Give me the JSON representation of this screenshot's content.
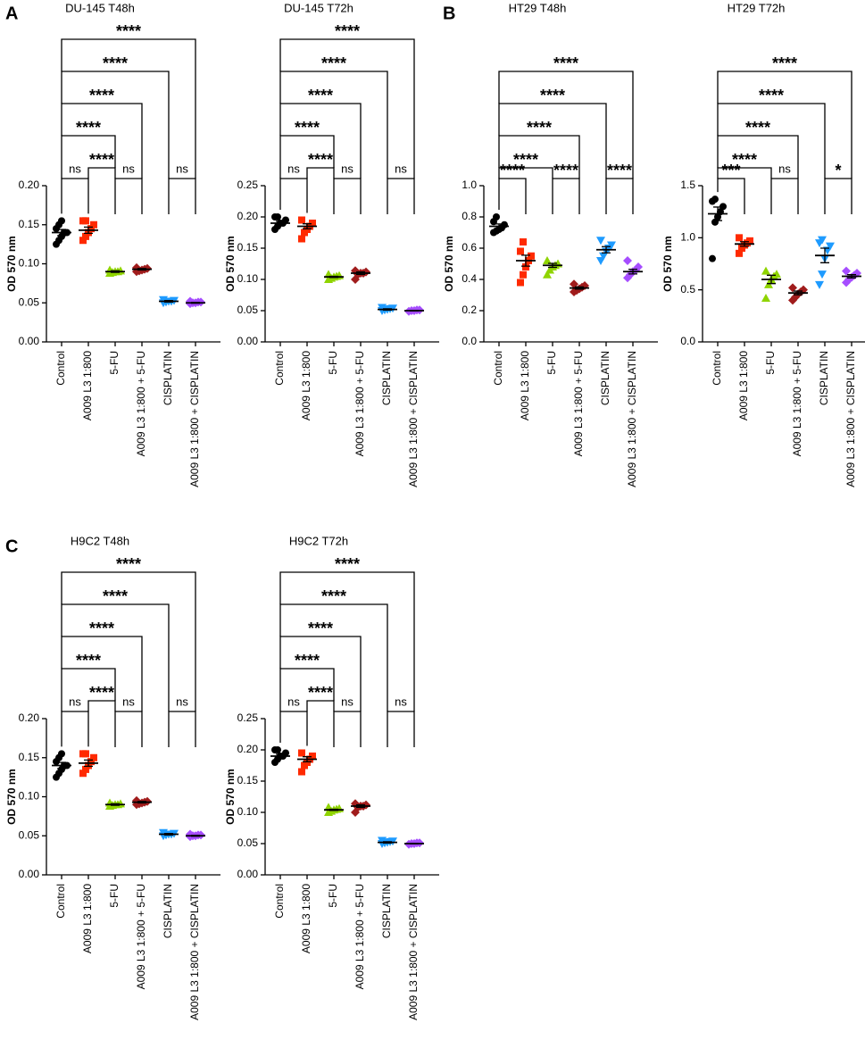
{
  "chart_data": [
    {
      "type": "dot",
      "panel": "A",
      "title": "DU-145 T48h",
      "y_label": "OD 570 nm",
      "categories": [
        "Control",
        "A009 L3 1:800",
        "5-FU",
        "A009 L3 1:800 + 5-FU",
        "CISPLATIN",
        "A009 L3 1:800 + CISPLATIN"
      ],
      "colors": [
        "#000000",
        "#ff2a00",
        "#8fd400",
        "#a01c1c",
        "#1e9bff",
        "#a64dff"
      ],
      "markers": [
        "circle",
        "square",
        "triangle",
        "diamond",
        "triangle-down",
        "diamond"
      ],
      "points": [
        [
          0.125,
          0.13,
          0.135,
          0.14,
          0.14,
          0.145,
          0.15,
          0.155
        ],
        [
          0.13,
          0.135,
          0.14,
          0.145,
          0.15,
          0.155,
          0.155
        ],
        [
          0.088,
          0.089,
          0.09,
          0.09,
          0.091,
          0.092
        ],
        [
          0.09,
          0.091,
          0.092,
          0.093,
          0.094,
          0.095
        ],
        [
          0.05,
          0.051,
          0.052,
          0.052,
          0.053,
          0.054
        ],
        [
          0.049,
          0.05,
          0.05,
          0.051,
          0.051,
          0.052
        ]
      ],
      "means": [
        0.14,
        0.143,
        0.09,
        0.093,
        0.052,
        0.05
      ],
      "errors": [
        0.004,
        0.004,
        0.001,
        0.001,
        0.001,
        0.0005
      ],
      "ylim": [
        0,
        0.2
      ],
      "yticks": [
        {
          "value": 0,
          "label": "0.00"
        },
        {
          "value": 0.05,
          "label": "0.05"
        },
        {
          "value": 0.1,
          "label": "0.10"
        },
        {
          "value": 0.15,
          "label": "0.15"
        },
        {
          "value": 0.2,
          "label": "0.20"
        }
      ],
      "comparisons": [
        {
          "from": 0,
          "to": 1,
          "label": "ns"
        },
        {
          "from": 2,
          "to": 3,
          "label": "ns"
        },
        {
          "from": 4,
          "to": 5,
          "label": "ns"
        },
        {
          "from": 1,
          "to": 2,
          "label": "****"
        },
        {
          "from": 0,
          "to": 2,
          "label": "****"
        },
        {
          "from": 0,
          "to": 3,
          "label": "****"
        },
        {
          "from": 0,
          "to": 4,
          "label": "****"
        },
        {
          "from": 0,
          "to": 5,
          "label": "****"
        }
      ]
    },
    {
      "type": "dot",
      "title": "DU-145 T72h",
      "y_label": "OD 570 nm",
      "categories": [
        "Control",
        "A009 L3 1:800",
        "5-FU",
        "A009 L3 1:800 + 5-FU",
        "CISPLATIN",
        "A009 L3 1:800 + CISPLATIN"
      ],
      "colors": [
        "#000000",
        "#ff2a00",
        "#8fd400",
        "#a01c1c",
        "#1e9bff",
        "#a64dff"
      ],
      "markers": [
        "circle",
        "square",
        "triangle",
        "diamond",
        "triangle-down",
        "diamond"
      ],
      "points": [
        [
          0.18,
          0.185,
          0.19,
          0.19,
          0.195,
          0.2,
          0.2
        ],
        [
          0.165,
          0.175,
          0.18,
          0.185,
          0.19,
          0.195
        ],
        [
          0.1,
          0.102,
          0.104,
          0.105,
          0.106,
          0.108
        ],
        [
          0.1,
          0.108,
          0.11,
          0.11,
          0.112,
          0.114
        ],
        [
          0.05,
          0.051,
          0.052,
          0.053,
          0.054,
          0.055
        ],
        [
          0.049,
          0.05,
          0.05,
          0.051,
          0.051
        ]
      ],
      "means": [
        0.19,
        0.185,
        0.104,
        0.11,
        0.052,
        0.05
      ],
      "errors": [
        0.003,
        0.004,
        0.001,
        0.002,
        0.001,
        0.0005
      ],
      "ylim": [
        0,
        0.25
      ],
      "yticks": [
        {
          "value": 0,
          "label": "0.00"
        },
        {
          "value": 0.05,
          "label": "0.05"
        },
        {
          "value": 0.1,
          "label": "0.10"
        },
        {
          "value": 0.15,
          "label": "0.15"
        },
        {
          "value": 0.2,
          "label": "0.20"
        },
        {
          "value": 0.25,
          "label": "0.25"
        }
      ],
      "comparisons": [
        {
          "from": 0,
          "to": 1,
          "label": "ns"
        },
        {
          "from": 2,
          "to": 3,
          "label": "ns"
        },
        {
          "from": 4,
          "to": 5,
          "label": "ns"
        },
        {
          "from": 1,
          "to": 2,
          "label": "****"
        },
        {
          "from": 0,
          "to": 2,
          "label": "****"
        },
        {
          "from": 0,
          "to": 3,
          "label": "****"
        },
        {
          "from": 0,
          "to": 4,
          "label": "****"
        },
        {
          "from": 0,
          "to": 5,
          "label": "****"
        }
      ]
    },
    {
      "type": "dot",
      "panel": "B",
      "title": "HT29 T48h",
      "y_label": "OD 570 nm",
      "categories": [
        "Control",
        "A009 L3 1:800",
        "5-FU",
        "A009 L3 1:800 + 5-FU",
        "CISPLATIN",
        "A009 L3 1:800 + CISPLATIN"
      ],
      "colors": [
        "#000000",
        "#ff2a00",
        "#8fd400",
        "#a01c1c",
        "#1e9bff",
        "#a64dff"
      ],
      "markers": [
        "circle",
        "square",
        "triangle",
        "diamond",
        "triangle-down",
        "diamond"
      ],
      "points": [
        [
          0.7,
          0.71,
          0.72,
          0.73,
          0.75,
          0.77,
          0.8
        ],
        [
          0.38,
          0.43,
          0.48,
          0.52,
          0.55,
          0.58,
          0.64
        ],
        [
          0.43,
          0.46,
          0.48,
          0.49,
          0.5,
          0.52
        ],
        [
          0.32,
          0.33,
          0.34,
          0.35,
          0.36,
          0.37
        ],
        [
          0.52,
          0.55,
          0.58,
          0.6,
          0.62,
          0.65
        ],
        [
          0.41,
          0.43,
          0.45,
          0.46,
          0.48,
          0.52
        ]
      ],
      "means": [
        0.74,
        0.52,
        0.49,
        0.345,
        0.59,
        0.45
      ],
      "errors": [
        0.015,
        0.035,
        0.013,
        0.007,
        0.02,
        0.015
      ],
      "ylim": [
        0,
        1
      ],
      "yticks": [
        {
          "value": 0,
          "label": "0.0"
        },
        {
          "value": 0.2,
          "label": "0.2"
        },
        {
          "value": 0.4,
          "label": "0.4"
        },
        {
          "value": 0.6,
          "label": "0.6"
        },
        {
          "value": 0.8,
          "label": "0.8"
        },
        {
          "value": 1,
          "label": "1.0"
        }
      ],
      "comparisons": [
        {
          "from": 0,
          "to": 1,
          "label": "****"
        },
        {
          "from": 2,
          "to": 3,
          "label": "****"
        },
        {
          "from": 4,
          "to": 5,
          "label": "****"
        },
        {
          "from": 0,
          "to": 2,
          "label": "****"
        },
        {
          "from": 0,
          "to": 3,
          "label": "****"
        },
        {
          "from": 0,
          "to": 4,
          "label": "****"
        },
        {
          "from": 0,
          "to": 5,
          "label": "****"
        }
      ]
    },
    {
      "type": "dot",
      "title": "HT29 T72h",
      "y_label": "OD 570 nm",
      "categories": [
        "Control",
        "A009 L3 1:800",
        "5-FU",
        "A009 L3 1:800 + 5-FU",
        "CISPLATIN",
        "A009 L3 1:800 + CISPLATIN"
      ],
      "colors": [
        "#000000",
        "#ff2a00",
        "#8fd400",
        "#a01c1c",
        "#1e9bff",
        "#a64dff"
      ],
      "markers": [
        "circle",
        "square",
        "triangle",
        "diamond",
        "triangle-down",
        "diamond"
      ],
      "points": [
        [
          0.8,
          1.15,
          1.2,
          1.25,
          1.3,
          1.35,
          1.37
        ],
        [
          0.85,
          0.9,
          0.93,
          0.95,
          0.97,
          1.0
        ],
        [
          0.42,
          0.55,
          0.6,
          0.63,
          0.65,
          0.68
        ],
        [
          0.4,
          0.43,
          0.46,
          0.48,
          0.5,
          0.52
        ],
        [
          0.55,
          0.65,
          0.8,
          0.88,
          0.92,
          0.95,
          0.98
        ],
        [
          0.57,
          0.6,
          0.62,
          0.64,
          0.66,
          0.68
        ]
      ],
      "means": [
        1.23,
        0.94,
        0.6,
        0.47,
        0.83,
        0.63
      ],
      "errors": [
        0.065,
        0.022,
        0.04,
        0.018,
        0.07,
        0.016
      ],
      "ylim": [
        0,
        1.5
      ],
      "yticks": [
        {
          "value": 0,
          "label": "0.0"
        },
        {
          "value": 0.5,
          "label": "0.5"
        },
        {
          "value": 1,
          "label": "1.0"
        },
        1.5
      ],
      "comparisons": [
        {
          "from": 0,
          "to": 1,
          "label": "***"
        },
        {
          "from": 2,
          "to": 3,
          "label": "ns"
        },
        {
          "from": 4,
          "to": 5,
          "label": "*"
        },
        {
          "from": 0,
          "to": 2,
          "label": "****"
        },
        {
          "from": 0,
          "to": 3,
          "label": "****"
        },
        {
          "from": 0,
          "to": 4,
          "label": "****"
        },
        {
          "from": 0,
          "to": 5,
          "label": "****"
        }
      ]
    },
    {
      "type": "dot",
      "panel": "C",
      "title": "H9C2 T48h",
      "y_label": "OD 570 nm",
      "categories": [
        "Control",
        "A009 L3 1:800",
        "5-FU",
        "A009 L3 1:800 + 5-FU",
        "CISPLATIN",
        "A009 L3 1:800 + CISPLATIN"
      ],
      "colors": [
        "#000000",
        "#ff2a00",
        "#8fd400",
        "#a01c1c",
        "#1e9bff",
        "#a64dff"
      ],
      "markers": [
        "circle",
        "square",
        "triangle",
        "diamond",
        "triangle-down",
        "diamond"
      ],
      "points": [
        [
          0.125,
          0.13,
          0.135,
          0.14,
          0.14,
          0.145,
          0.15,
          0.155
        ],
        [
          0.13,
          0.135,
          0.14,
          0.145,
          0.15,
          0.155,
          0.155
        ],
        [
          0.088,
          0.089,
          0.09,
          0.09,
          0.091,
          0.092
        ],
        [
          0.09,
          0.091,
          0.092,
          0.093,
          0.094,
          0.095
        ],
        [
          0.05,
          0.051,
          0.052,
          0.052,
          0.053,
          0.054
        ],
        [
          0.049,
          0.05,
          0.05,
          0.051,
          0.051,
          0.052
        ]
      ],
      "means": [
        0.14,
        0.143,
        0.09,
        0.093,
        0.052,
        0.05
      ],
      "errors": [
        0.004,
        0.004,
        0.001,
        0.001,
        0.001,
        0.0005
      ],
      "ylim": [
        0,
        0.2
      ],
      "yticks": [
        {
          "value": 0,
          "label": "0.00"
        },
        {
          "value": 0.05,
          "label": "0.05"
        },
        {
          "value": 0.1,
          "label": "0.10"
        },
        {
          "value": 0.15,
          "label": "0.15"
        },
        {
          "value": 0.2,
          "label": "0.20"
        }
      ],
      "comparisons": [
        {
          "from": 0,
          "to": 1,
          "label": "ns"
        },
        {
          "from": 2,
          "to": 3,
          "label": "ns"
        },
        {
          "from": 4,
          "to": 5,
          "label": "ns"
        },
        {
          "from": 1,
          "to": 2,
          "label": "****"
        },
        {
          "from": 0,
          "to": 2,
          "label": "****"
        },
        {
          "from": 0,
          "to": 3,
          "label": "****"
        },
        {
          "from": 0,
          "to": 4,
          "label": "****"
        },
        {
          "from": 0,
          "to": 5,
          "label": "****"
        }
      ]
    },
    {
      "type": "dot",
      "title": "H9C2 T72h",
      "y_label": "OD 570 nm",
      "categories": [
        "Control",
        "A009 L3 1:800",
        "5-FU",
        "A009 L3 1:800 + 5-FU",
        "CISPLATIN",
        "A009 L3 1:800 + CISPLATIN"
      ],
      "colors": [
        "#000000",
        "#ff2a00",
        "#8fd400",
        "#a01c1c",
        "#1e9bff",
        "#a64dff"
      ],
      "markers": [
        "circle",
        "square",
        "triangle",
        "diamond",
        "triangle-down",
        "diamond"
      ],
      "points": [
        [
          0.18,
          0.185,
          0.19,
          0.19,
          0.195,
          0.2,
          0.2
        ],
        [
          0.165,
          0.175,
          0.18,
          0.185,
          0.19,
          0.195
        ],
        [
          0.1,
          0.102,
          0.104,
          0.105,
          0.106,
          0.108
        ],
        [
          0.1,
          0.108,
          0.11,
          0.11,
          0.112,
          0.114
        ],
        [
          0.05,
          0.051,
          0.052,
          0.053,
          0.054,
          0.055
        ],
        [
          0.049,
          0.05,
          0.05,
          0.051,
          0.051
        ]
      ],
      "means": [
        0.19,
        0.185,
        0.104,
        0.11,
        0.052,
        0.05
      ],
      "errors": [
        0.003,
        0.004,
        0.001,
        0.002,
        0.001,
        0.0005
      ],
      "ylim": [
        0,
        0.25
      ],
      "yticks": [
        {
          "value": 0,
          "label": "0.00"
        },
        {
          "value": 0.05,
          "label": "0.05"
        },
        {
          "value": 0.1,
          "label": "0.10"
        },
        {
          "value": 0.15,
          "label": "0.15"
        },
        {
          "value": 0.2,
          "label": "0.20"
        },
        {
          "value": 0.25,
          "label": "0.25"
        }
      ],
      "comparisons": [
        {
          "from": 0,
          "to": 1,
          "label": "ns"
        },
        {
          "from": 2,
          "to": 3,
          "label": "ns"
        },
        {
          "from": 4,
          "to": 5,
          "label": "ns"
        },
        {
          "from": 1,
          "to": 2,
          "label": "****"
        },
        {
          "from": 0,
          "to": 2,
          "label": "****"
        },
        {
          "from": 0,
          "to": 3,
          "label": "****"
        },
        {
          "from": 0,
          "to": 4,
          "label": "****"
        },
        {
          "from": 0,
          "to": 5,
          "label": "****"
        }
      ]
    }
  ]
}
